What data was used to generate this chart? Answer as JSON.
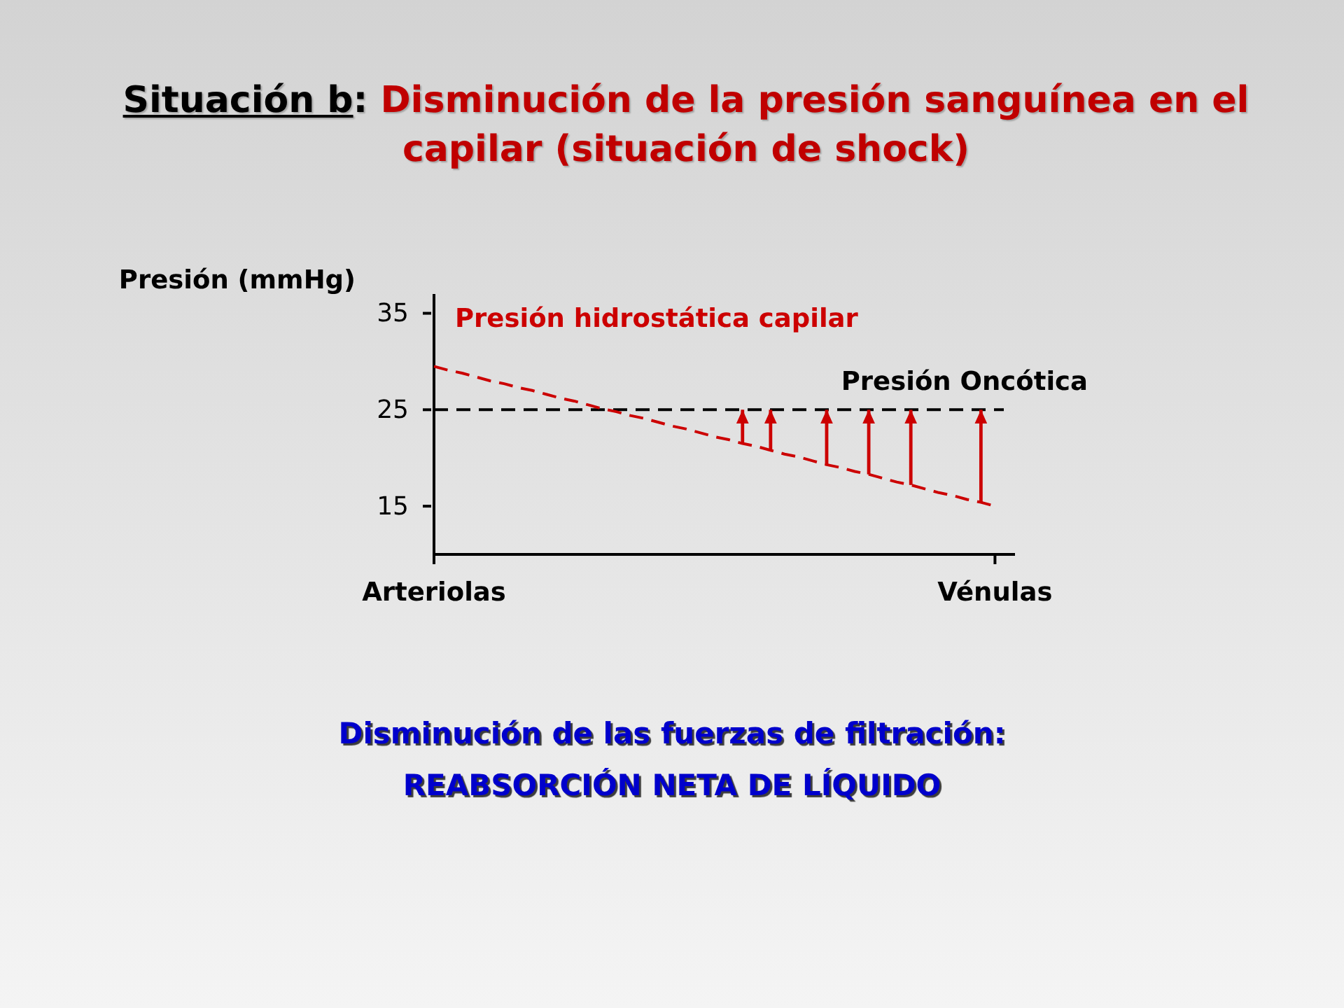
{
  "chart_data": {
    "type": "line",
    "title": "Situación b: Disminución de la presión sanguínea en el capilar (situación de shock)",
    "ylabel": "Presión (mmHg)",
    "categories": [
      "Arteriolas",
      null,
      null,
      null,
      null,
      null,
      null,
      null,
      null,
      null,
      null,
      null,
      null,
      null,
      null,
      null,
      null,
      null,
      null,
      null,
      null,
      null,
      null,
      null,
      null,
      null,
      null,
      null,
      null,
      null,
      null,
      null,
      null,
      null,
      null,
      null,
      null,
      null,
      null,
      null,
      "Vénulas"
    ],
    "ylim": [
      10,
      37
    ],
    "yticks": [
      15,
      25,
      35
    ],
    "series": [
      {
        "name": "Presión hidrostática capilar",
        "color": "#cc0000",
        "line_style": "dashed",
        "values": [
          29.5,
          29.1,
          28.8,
          28.4,
          28.0,
          27.7,
          27.3,
          27.0,
          26.6,
          26.2,
          25.9,
          25.5,
          25.1,
          24.8,
          24.4,
          24.1,
          23.7,
          23.3,
          23.0,
          22.6,
          22.2,
          21.9,
          21.5,
          21.2,
          20.8,
          20.4,
          20.1,
          19.7,
          19.3,
          19.0,
          18.6,
          18.3,
          17.9,
          17.5,
          17.2,
          16.8,
          16.4,
          16.1,
          15.7,
          15.4,
          15.0
        ],
        "errors": [
          null,
          null,
          null,
          null,
          null,
          null,
          null,
          null,
          null,
          null,
          null,
          null,
          null,
          null,
          null,
          null,
          null,
          null,
          null,
          null,
          null,
          null,
          [
            21.5,
            25
          ],
          null,
          [
            20.8,
            25
          ],
          null,
          null,
          null,
          [
            19.3,
            25
          ],
          null,
          null,
          [
            18.3,
            25
          ],
          null,
          null,
          [
            17.2,
            25
          ],
          null,
          null,
          null,
          null,
          [
            15.4,
            25
          ],
          null
        ]
      }
    ],
    "ref_lines": [
      {
        "axis": "y",
        "value": 25,
        "label": "Presión Oncótica",
        "color": "#000000",
        "line_style": "dashed"
      }
    ],
    "annotations": [
      "Disminución de las fuerzas de filtración:",
      "REABSORCIÓN NETA DE LÍQUIDO"
    ]
  }
}
